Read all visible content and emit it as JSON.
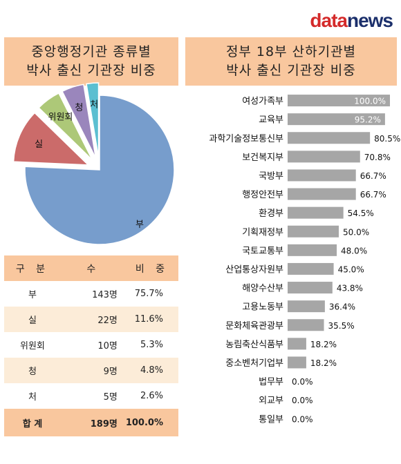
{
  "logo": {
    "part1": "data",
    "part2": "news"
  },
  "left_panel": {
    "title_line1": "중앙행정기관 종류별",
    "title_line2": "박사 출신 기관장 비중"
  },
  "right_panel": {
    "title_line1": "정부 18부 산하기관별",
    "title_line2": "박사 출신 기관장 비중"
  },
  "table": {
    "headers": [
      "구 분",
      "수",
      "비 중"
    ],
    "rows": [
      {
        "category": "부",
        "count": "143명",
        "share": "75.7%"
      },
      {
        "category": "실",
        "count": "22명",
        "share": "11.6%"
      },
      {
        "category": "위원회",
        "count": "10명",
        "share": "5.3%"
      },
      {
        "category": "청",
        "count": "9명",
        "share": "4.8%"
      },
      {
        "category": "처",
        "count": "5명",
        "share": "2.6%"
      }
    ],
    "total": {
      "category": "합 계",
      "count": "189명",
      "share": "100.0%"
    }
  },
  "chart_data": [
    {
      "type": "pie",
      "labels": [
        "부",
        "실",
        "위원회",
        "청",
        "처"
      ],
      "values": [
        75.7,
        11.6,
        5.3,
        4.8,
        2.6
      ],
      "colors": [
        "#779dcc",
        "#cb6b6a",
        "#adc878",
        "#9a86bc",
        "#5bbfd1"
      ],
      "exploded": [
        "실",
        "위원회",
        "청",
        "처"
      ]
    },
    {
      "type": "bar",
      "orientation": "horizontal",
      "categories": [
        "여성가족부",
        "교육부",
        "과학기술정보통신부",
        "보건복지부",
        "국방부",
        "행정안전부",
        "환경부",
        "기획재정부",
        "국토교통부",
        "산업통상자원부",
        "해양수산부",
        "고용노동부",
        "문화체육관광부",
        "농림축산식품부",
        "중소벤처기업부",
        "법무부",
        "외교부",
        "통일부"
      ],
      "values": [
        100.0,
        95.2,
        80.5,
        70.8,
        66.7,
        66.7,
        54.5,
        50.0,
        48.0,
        45.0,
        43.8,
        36.4,
        35.5,
        18.2,
        18.2,
        0.0,
        0.0,
        0.0
      ],
      "value_labels": [
        "100.0%",
        "95.2%",
        "80.5%",
        "70.8%",
        "66.7%",
        "66.7%",
        "54.5%",
        "50.0%",
        "48.0%",
        "45.0%",
        "43.8%",
        "36.4%",
        "35.5%",
        "18.2%",
        "18.2%",
        "0.0%",
        "0.0%",
        "0.0%"
      ],
      "xlim": [
        0,
        100
      ],
      "bar_color": "#a6a6a6",
      "inside_label_color": "#ffffff"
    }
  ]
}
